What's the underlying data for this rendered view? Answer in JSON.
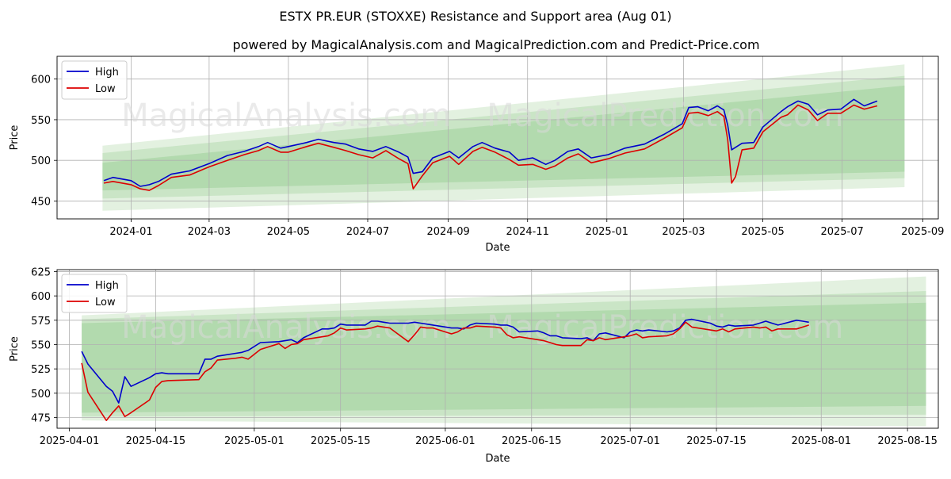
{
  "title": "ESTX PR.EUR (STOXXE) Resistance and Support area (Aug 01)",
  "subtitle": "powered by MagicalAnalysis.com and MagicalPrediction.com and Predict-Price.com",
  "watermarks": [
    "MagicalAnalysis.com",
    "MagicalPrediction.com"
  ],
  "colors": {
    "high": "#0000cc",
    "low": "#dd0000",
    "band_light": "#d7ebd3",
    "band_mid": "#bfe0bb",
    "band_dark": "#a9d5a5",
    "grid": "#b0b0b0"
  },
  "chart_data": [
    {
      "type": "line",
      "xlabel": "Date",
      "ylabel": "Price",
      "xlim": [
        "2023-11-05",
        "2025-09-13"
      ],
      "ylim": [
        428,
        628
      ],
      "grid": true,
      "legend": "top-left",
      "xticks": [
        "2024-01",
        "2024-03",
        "2024-05",
        "2024-07",
        "2024-09",
        "2024-11",
        "2025-01",
        "2025-03",
        "2025-05",
        "2025-07",
        "2025-09"
      ],
      "xtick_dates": [
        "2024-01-01",
        "2024-03-01",
        "2024-05-01",
        "2024-07-01",
        "2024-09-01",
        "2024-11-01",
        "2025-01-01",
        "2025-03-01",
        "2025-05-01",
        "2025-07-01",
        "2025-09-01"
      ],
      "yticks": [
        450,
        500,
        550,
        600
      ],
      "bands": [
        {
          "x": [
            "2023-12-10",
            "2025-08-18"
          ],
          "lower": [
            438,
            467
          ],
          "upper": [
            518,
            618
          ]
        },
        {
          "x": [
            "2023-12-10",
            "2025-08-18"
          ],
          "lower": [
            453,
            478
          ],
          "upper": [
            509,
            604
          ]
        },
        {
          "x": [
            "2023-12-10",
            "2025-08-18"
          ],
          "lower": [
            463,
            486
          ],
          "upper": [
            497,
            592
          ]
        }
      ],
      "series": [
        {
          "name": "High",
          "x": [
            "2023-12-11",
            "2023-12-18",
            "2024-01-01",
            "2024-01-08",
            "2024-01-15",
            "2024-01-22",
            "2024-02-01",
            "2024-02-15",
            "2024-03-01",
            "2024-03-15",
            "2024-03-28",
            "2024-04-08",
            "2024-04-15",
            "2024-04-25",
            "2024-05-01",
            "2024-05-15",
            "2024-05-24",
            "2024-06-05",
            "2024-06-14",
            "2024-06-24",
            "2024-07-05",
            "2024-07-15",
            "2024-07-25",
            "2024-08-01",
            "2024-08-05",
            "2024-08-12",
            "2024-08-20",
            "2024-09-02",
            "2024-09-09",
            "2024-09-20",
            "2024-09-27",
            "2024-10-07",
            "2024-10-18",
            "2024-10-25",
            "2024-11-05",
            "2024-11-15",
            "2024-11-22",
            "2024-12-02",
            "2024-12-10",
            "2024-12-20",
            "2025-01-02",
            "2025-01-15",
            "2025-01-30",
            "2025-02-14",
            "2025-02-28",
            "2025-03-05",
            "2025-03-12",
            "2025-03-20",
            "2025-03-27",
            "2025-04-01",
            "2025-04-04",
            "2025-04-07",
            "2025-04-10",
            "2025-04-15",
            "2025-04-24",
            "2025-05-01",
            "2025-05-15",
            "2025-05-20",
            "2025-05-28",
            "2025-06-05",
            "2025-06-12",
            "2025-06-20",
            "2025-06-30",
            "2025-07-10",
            "2025-07-18",
            "2025-07-28"
          ],
          "values": [
            475,
            479,
            475,
            468,
            470,
            474,
            483,
            487,
            496,
            506,
            511,
            517,
            522,
            515,
            517,
            522,
            526,
            522,
            520,
            514,
            511,
            517,
            510,
            504,
            484,
            486,
            503,
            511,
            503,
            517,
            522,
            515,
            510,
            500,
            503,
            495,
            500,
            511,
            514,
            503,
            507,
            515,
            520,
            532,
            545,
            565,
            566,
            561,
            567,
            562,
            543,
            513,
            516,
            521,
            522,
            541,
            560,
            566,
            573,
            569,
            556,
            562,
            563,
            575,
            567,
            573
          ]
        },
        {
          "name": "Low",
          "x": [
            "2023-12-11",
            "2023-12-18",
            "2024-01-01",
            "2024-01-08",
            "2024-01-15",
            "2024-01-22",
            "2024-02-01",
            "2024-02-15",
            "2024-03-01",
            "2024-03-15",
            "2024-03-28",
            "2024-04-08",
            "2024-04-15",
            "2024-04-25",
            "2024-05-01",
            "2024-05-15",
            "2024-05-24",
            "2024-06-05",
            "2024-06-14",
            "2024-06-24",
            "2024-07-05",
            "2024-07-15",
            "2024-07-25",
            "2024-08-01",
            "2024-08-05",
            "2024-08-12",
            "2024-08-20",
            "2024-09-02",
            "2024-09-09",
            "2024-09-20",
            "2024-09-27",
            "2024-10-07",
            "2024-10-18",
            "2024-10-25",
            "2024-11-05",
            "2024-11-15",
            "2024-11-22",
            "2024-12-02",
            "2024-12-10",
            "2024-12-20",
            "2025-01-02",
            "2025-01-15",
            "2025-01-30",
            "2025-02-14",
            "2025-02-28",
            "2025-03-05",
            "2025-03-12",
            "2025-03-20",
            "2025-03-27",
            "2025-04-01",
            "2025-04-04",
            "2025-04-07",
            "2025-04-10",
            "2025-04-15",
            "2025-04-24",
            "2025-05-01",
            "2025-05-15",
            "2025-05-20",
            "2025-05-28",
            "2025-06-05",
            "2025-06-12",
            "2025-06-20",
            "2025-06-30",
            "2025-07-10",
            "2025-07-18",
            "2025-07-28"
          ],
          "values": [
            472,
            474,
            470,
            465,
            463,
            469,
            479,
            482,
            492,
            500,
            507,
            512,
            517,
            510,
            510,
            517,
            521,
            516,
            512,
            507,
            503,
            512,
            502,
            496,
            465,
            481,
            497,
            505,
            495,
            511,
            516,
            510,
            501,
            494,
            495,
            489,
            493,
            503,
            508,
            497,
            502,
            509,
            514,
            527,
            540,
            558,
            559,
            555,
            560,
            554,
            525,
            472,
            480,
            513,
            515,
            535,
            553,
            556,
            568,
            562,
            549,
            558,
            558,
            568,
            563,
            567
          ]
        }
      ]
    },
    {
      "type": "line",
      "xlabel": "Date",
      "ylabel": "Price",
      "xlim": [
        "2025-03-30",
        "2025-08-20"
      ],
      "ylim": [
        464,
        627
      ],
      "grid": true,
      "legend": "top-left",
      "xticks": [
        "2025-04-01",
        "2025-04-15",
        "2025-05-01",
        "2025-05-15",
        "2025-06-01",
        "2025-06-15",
        "2025-07-01",
        "2025-07-15",
        "2025-08-01",
        "2025-08-15"
      ],
      "yticks": [
        475,
        500,
        525,
        550,
        575,
        600,
        625
      ],
      "bands": [
        {
          "x": [
            "2025-04-03",
            "2025-08-18"
          ],
          "lower": [
            472,
            466
          ],
          "upper": [
            580,
            620
          ]
        },
        {
          "x": [
            "2025-04-03",
            "2025-08-18"
          ],
          "lower": [
            476,
            478
          ],
          "upper": [
            576,
            605
          ]
        },
        {
          "x": [
            "2025-04-03",
            "2025-08-18"
          ],
          "lower": [
            480,
            487
          ],
          "upper": [
            572,
            593
          ]
        }
      ],
      "series": [
        {
          "name": "High",
          "x": [
            "2025-04-03",
            "2025-04-04",
            "2025-04-07",
            "2025-04-08",
            "2025-04-09",
            "2025-04-10",
            "2025-04-11",
            "2025-04-14",
            "2025-04-15",
            "2025-04-16",
            "2025-04-17",
            "2025-04-22",
            "2025-04-23",
            "2025-04-24",
            "2025-04-25",
            "2025-04-28",
            "2025-04-29",
            "2025-04-30",
            "2025-05-02",
            "2025-05-05",
            "2025-05-06",
            "2025-05-07",
            "2025-05-08",
            "2025-05-09",
            "2025-05-12",
            "2025-05-13",
            "2025-05-14",
            "2025-05-15",
            "2025-05-16",
            "2025-05-19",
            "2025-05-20",
            "2025-05-21",
            "2025-05-22",
            "2025-05-23",
            "2025-05-26",
            "2025-05-27",
            "2025-05-28",
            "2025-05-29",
            "2025-05-30",
            "2025-06-02",
            "2025-06-03",
            "2025-06-04",
            "2025-06-05",
            "2025-06-06",
            "2025-06-09",
            "2025-06-10",
            "2025-06-11",
            "2025-06-12",
            "2025-06-13",
            "2025-06-16",
            "2025-06-17",
            "2025-06-18",
            "2025-06-19",
            "2025-06-20",
            "2025-06-23",
            "2025-06-24",
            "2025-06-25",
            "2025-06-26",
            "2025-06-27",
            "2025-06-30",
            "2025-07-01",
            "2025-07-02",
            "2025-07-03",
            "2025-07-04",
            "2025-07-07",
            "2025-07-08",
            "2025-07-09",
            "2025-07-10",
            "2025-07-11",
            "2025-07-14",
            "2025-07-15",
            "2025-07-16",
            "2025-07-17",
            "2025-07-18",
            "2025-07-21",
            "2025-07-22",
            "2025-07-23",
            "2025-07-24",
            "2025-07-25",
            "2025-07-28",
            "2025-07-29",
            "2025-07-30"
          ],
          "values": [
            543,
            530,
            507,
            502,
            490,
            517,
            507,
            516,
            520,
            521,
            520,
            520,
            535,
            535,
            538,
            541,
            542,
            544,
            552,
            553,
            554,
            555,
            552,
            557,
            566,
            566,
            567,
            571,
            570,
            570,
            574,
            574,
            573,
            572,
            572,
            573,
            572,
            571,
            570,
            567,
            567,
            566,
            570,
            572,
            571,
            570,
            570,
            568,
            563,
            564,
            562,
            559,
            559,
            557,
            556,
            557,
            554,
            561,
            562,
            557,
            563,
            565,
            564,
            565,
            563,
            564,
            567,
            575,
            576,
            572,
            569,
            568,
            570,
            569,
            570,
            572,
            574,
            572,
            570,
            575,
            574,
            573
          ]
        },
        {
          "name": "Low",
          "x": [
            "2025-04-03",
            "2025-04-04",
            "2025-04-07",
            "2025-04-08",
            "2025-04-09",
            "2025-04-10",
            "2025-04-11",
            "2025-04-14",
            "2025-04-15",
            "2025-04-16",
            "2025-04-17",
            "2025-04-22",
            "2025-04-23",
            "2025-04-24",
            "2025-04-25",
            "2025-04-28",
            "2025-04-29",
            "2025-04-30",
            "2025-05-02",
            "2025-05-05",
            "2025-05-06",
            "2025-05-07",
            "2025-05-08",
            "2025-05-09",
            "2025-05-12",
            "2025-05-13",
            "2025-05-14",
            "2025-05-15",
            "2025-05-16",
            "2025-05-19",
            "2025-05-20",
            "2025-05-21",
            "2025-05-22",
            "2025-05-23",
            "2025-05-26",
            "2025-05-27",
            "2025-05-28",
            "2025-05-29",
            "2025-05-30",
            "2025-06-02",
            "2025-06-03",
            "2025-06-04",
            "2025-06-05",
            "2025-06-06",
            "2025-06-09",
            "2025-06-10",
            "2025-06-11",
            "2025-06-12",
            "2025-06-13",
            "2025-06-16",
            "2025-06-17",
            "2025-06-18",
            "2025-06-19",
            "2025-06-20",
            "2025-06-23",
            "2025-06-24",
            "2025-06-25",
            "2025-06-26",
            "2025-06-27",
            "2025-06-30",
            "2025-07-01",
            "2025-07-02",
            "2025-07-03",
            "2025-07-04",
            "2025-07-07",
            "2025-07-08",
            "2025-07-09",
            "2025-07-10",
            "2025-07-11",
            "2025-07-14",
            "2025-07-15",
            "2025-07-16",
            "2025-07-17",
            "2025-07-18",
            "2025-07-21",
            "2025-07-22",
            "2025-07-23",
            "2025-07-24",
            "2025-07-25",
            "2025-07-28",
            "2025-07-29",
            "2025-07-30"
          ],
          "values": [
            531,
            501,
            472,
            480,
            487,
            476,
            480,
            493,
            506,
            512,
            513,
            514,
            522,
            526,
            534,
            536,
            537,
            535,
            545,
            551,
            546,
            550,
            551,
            555,
            558,
            559,
            562,
            567,
            565,
            566,
            567,
            569,
            568,
            567,
            553,
            560,
            568,
            567,
            567,
            561,
            563,
            567,
            567,
            569,
            568,
            567,
            560,
            557,
            558,
            555,
            554,
            552,
            550,
            549,
            549,
            555,
            554,
            557,
            555,
            558,
            559,
            561,
            557,
            558,
            559,
            561,
            566,
            573,
            568,
            565,
            564,
            566,
            563,
            566,
            568,
            567,
            568,
            564,
            566,
            566,
            568,
            570
          ]
        }
      ]
    }
  ]
}
